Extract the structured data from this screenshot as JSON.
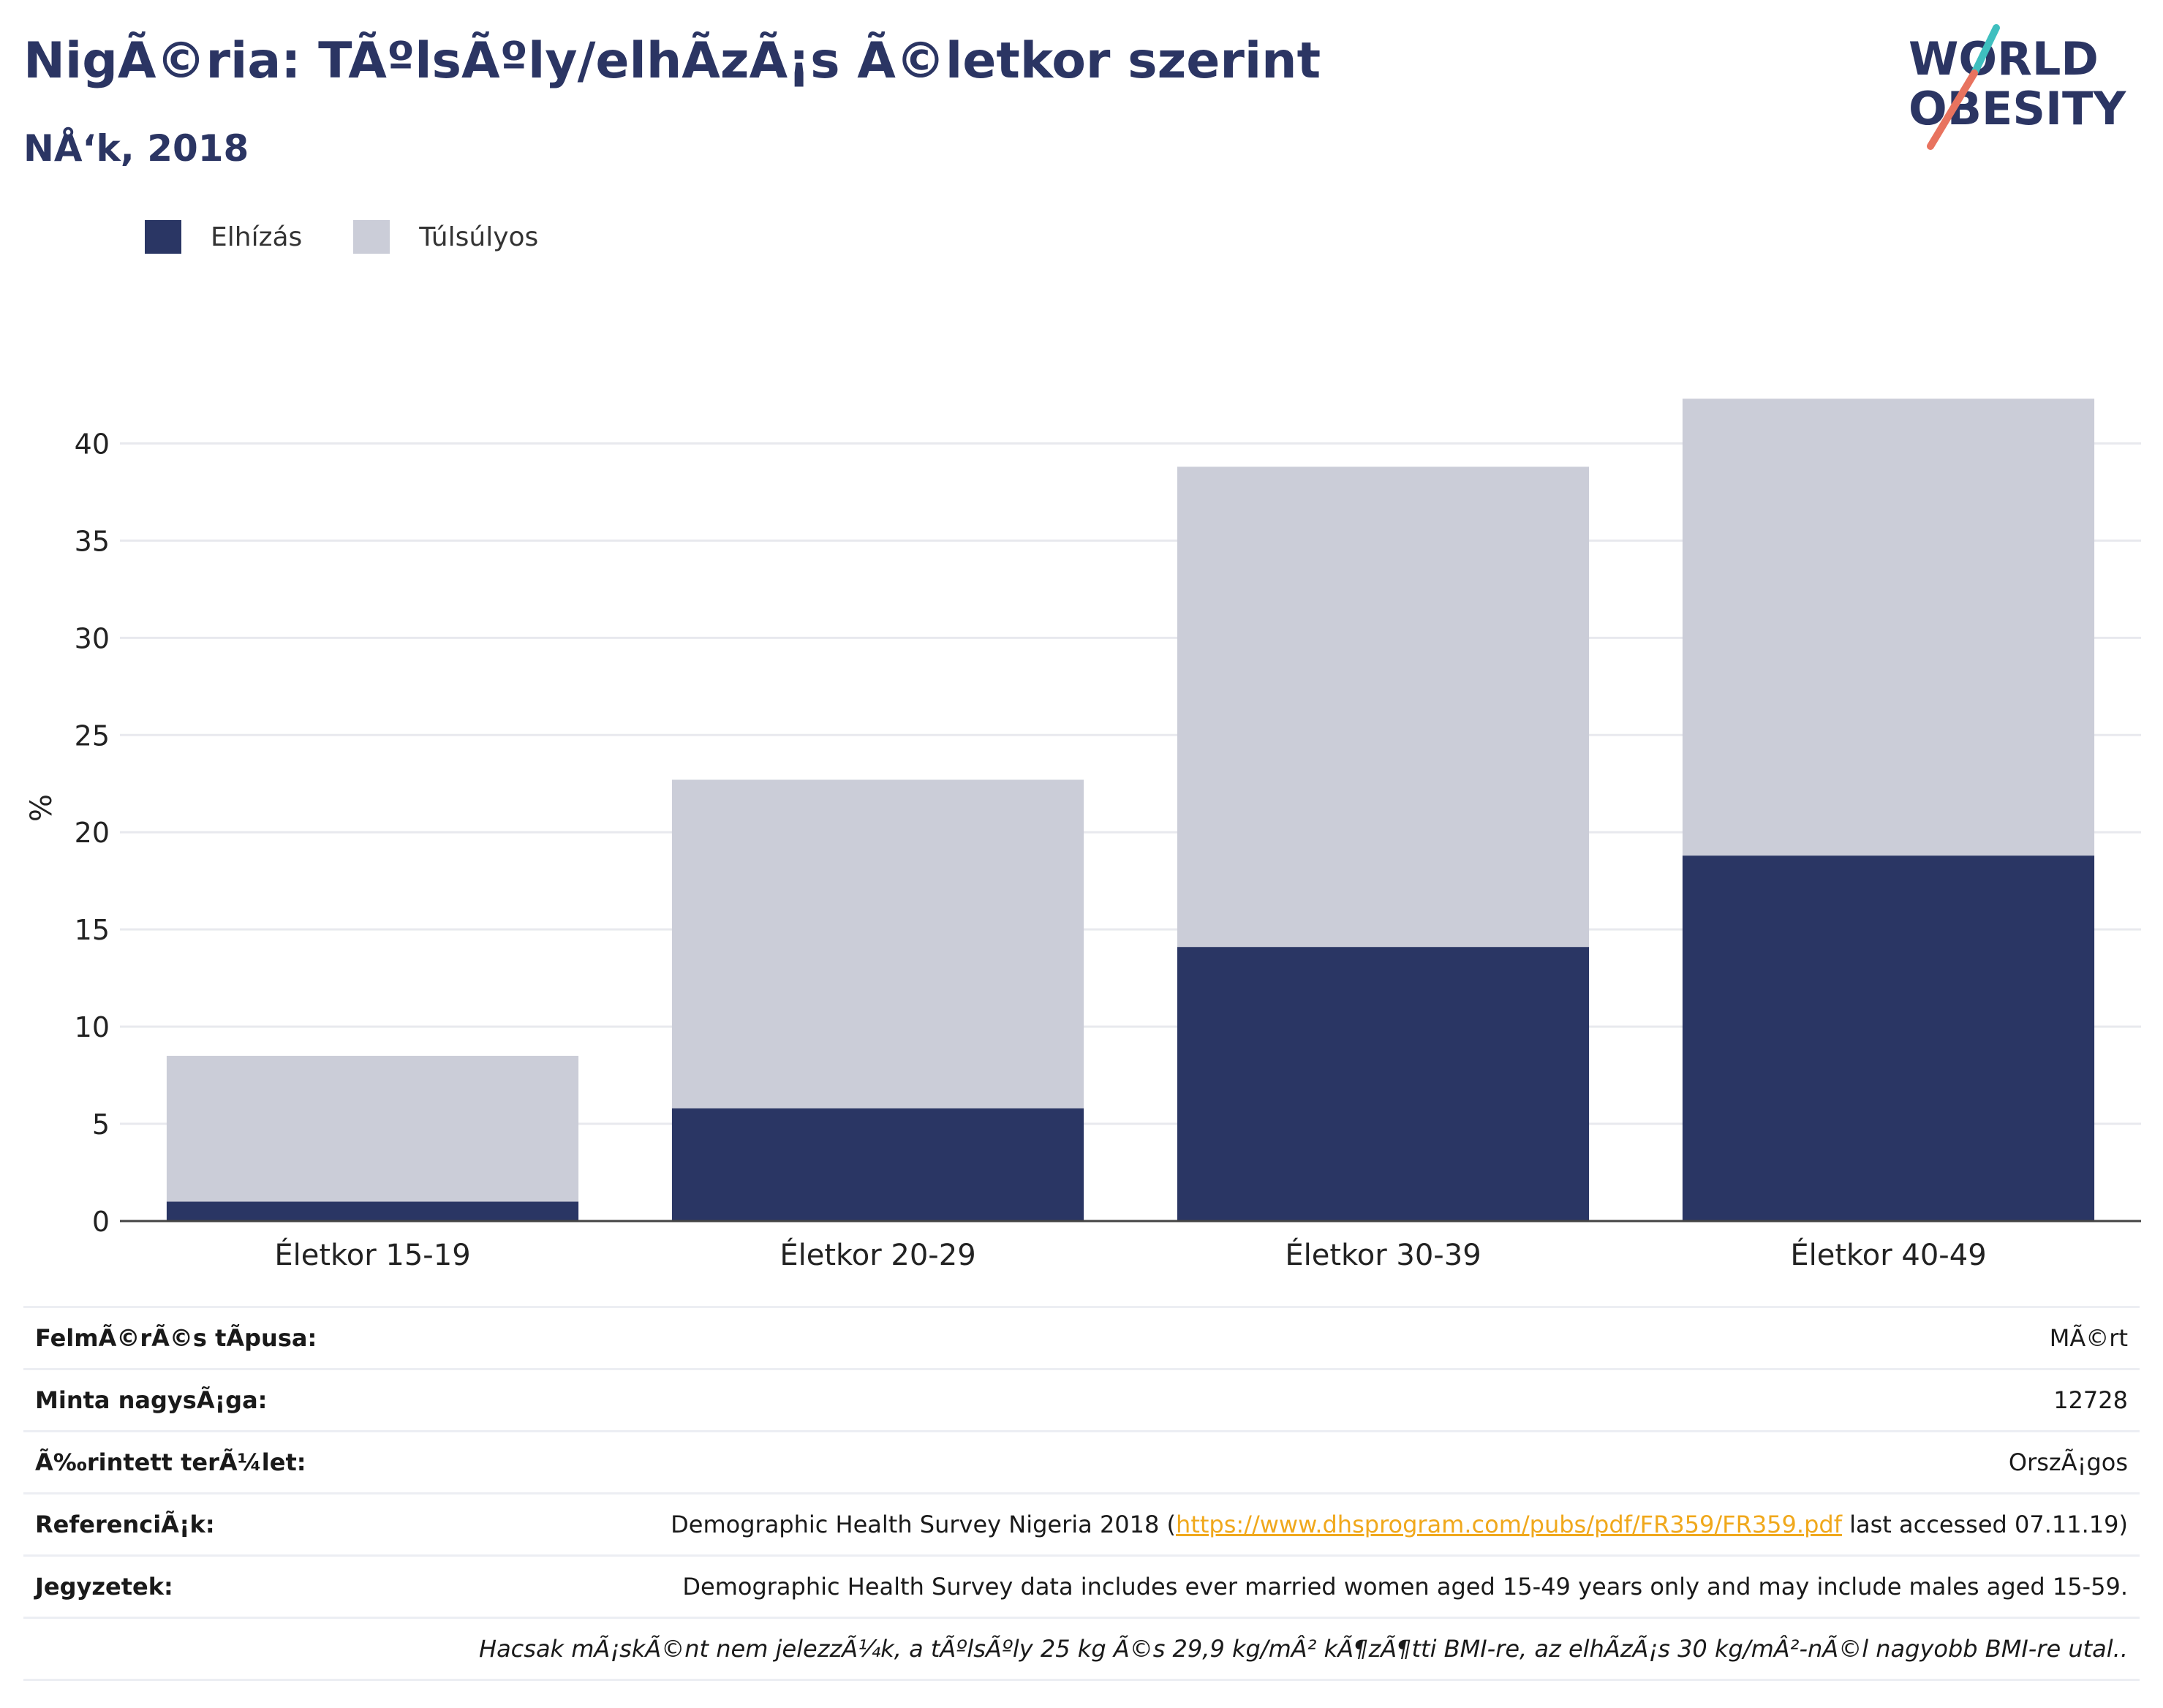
{
  "header": {
    "title": "NigÃ©ria: TÃºlsÃºly/elhÃ­zÃ¡s Ã©letkor szerint",
    "subtitle": "NÅ‘k, 2018"
  },
  "logo": {
    "line1": "WORLD",
    "line2": "OBESITY"
  },
  "legend": [
    {
      "label": "Elhízás",
      "color": "#2a3664"
    },
    {
      "label": "Túlsúlyos",
      "color": "#cbcdd8"
    }
  ],
  "chart_data": {
    "type": "bar",
    "stacked": true,
    "categories": [
      "Életkor 15-19",
      "Életkor 20-29",
      "Életkor 30-39",
      "Életkor 40-49"
    ],
    "series": [
      {
        "name": "Elhízás",
        "values": [
          1.0,
          5.8,
          14.1,
          18.8
        ],
        "color": "#2a3664"
      },
      {
        "name": "Túlsúlyos",
        "values": [
          7.5,
          16.9,
          24.7,
          23.5
        ],
        "color": "#cbcdd8"
      }
    ],
    "ylabel": "%",
    "ylim": [
      0,
      42.5
    ],
    "yticks": [
      0,
      5,
      10,
      15,
      20,
      25,
      30,
      35,
      40
    ],
    "grid": true,
    "legend_position": "top-left"
  },
  "info": {
    "survey_type": {
      "label": "FelmÃ©rÃ©s tÃpusa:",
      "value": "MÃ©rt"
    },
    "sample_size": {
      "label": "Minta nagysÃ¡ga:",
      "value": "12728"
    },
    "area": {
      "label": "Ã‰rintett terÃ¼let:",
      "value": "OrszÃ¡gos"
    },
    "references": {
      "label": "ReferenciÃ¡k:",
      "prefix": "Demographic Health Survey Nigeria 2018 (",
      "link": "https://www.dhsprogram.com/pubs/pdf/FR359/FR359.pdf",
      "suffix": " last accessed 07.11.19)"
    },
    "notes": {
      "label": "Jegyzetek:",
      "value": "Demographic Health Survey data includes ever married women aged 15-49 years only and may include males aged 15-59."
    },
    "footnote": "Hacsak mÃ¡skÃ©nt nem jelezzÃ¼k, a tÃºlsÃºly 25 kg Ã©s 29,9 kg/mÂ² kÃ¶zÃ¶tti BMI-re, az elhÃ­zÃ¡s 30 kg/mÂ²-nÃ©l nagyobb BMI-re utal.."
  }
}
